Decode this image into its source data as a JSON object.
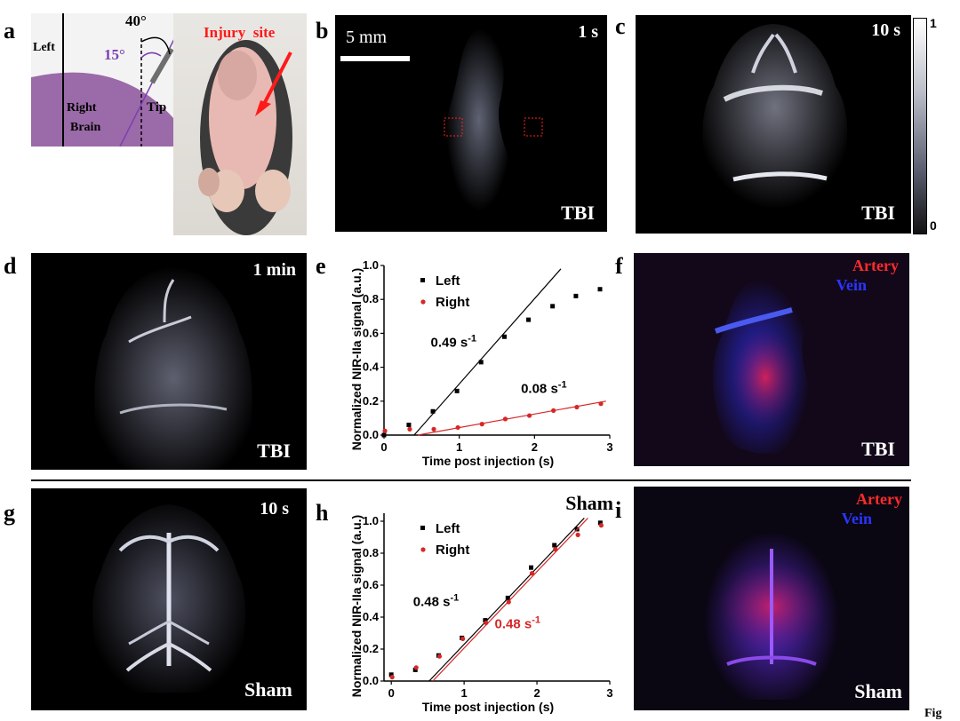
{
  "labels": {
    "a": "a",
    "b": "b",
    "c": "c",
    "d": "d",
    "e": "e",
    "f": "f",
    "g": "g",
    "h": "h",
    "i": "i"
  },
  "panel_a": {
    "angle_outer": "40°",
    "angle_inner": "15°",
    "left": "Left",
    "right_brain_1": "Right",
    "right_brain_2": "Brain",
    "tip": "Tip",
    "injury": "Injury  site",
    "colors": {
      "brain": "#9b6aa8",
      "injury_text": "#ff1a1a",
      "angle_purple": "#7d3fb0"
    }
  },
  "panel_b": {
    "time": "1 s",
    "scale": "5 mm",
    "group": "TBI"
  },
  "panel_c": {
    "time": "10 s",
    "group": "TBI",
    "cbar_max": "1",
    "cbar_min": "0"
  },
  "panel_d": {
    "time": "1 min",
    "group": "TBI"
  },
  "panel_f": {
    "artery": "Artery",
    "vein": "Vein",
    "group": "TBI"
  },
  "panel_g": {
    "time": "10 s",
    "group": "Sham"
  },
  "panel_i": {
    "artery": "Artery",
    "vein": "Vein",
    "group": "Sham"
  },
  "footer": {
    "fig": "Fig"
  },
  "chart_data": [
    {
      "id": "e",
      "type": "scatter",
      "xlabel": "Time post injection (s)",
      "ylabel": "Normalized NIR-IIa signal (a.u.)",
      "xlim": [
        0,
        3
      ],
      "ylim": [
        0,
        1.0
      ],
      "xticks": [
        "0",
        "1",
        "2",
        "3"
      ],
      "yticks": [
        "0.0",
        "0.2",
        "0.4",
        "0.6",
        "0.8",
        "1.0"
      ],
      "legend_position": "top-left",
      "series": [
        {
          "name": "Left",
          "color": "#000000",
          "x": [
            0.0,
            0.33,
            0.65,
            0.97,
            1.29,
            1.6,
            1.92,
            2.24,
            2.55,
            2.87
          ],
          "y": [
            0.0,
            0.06,
            0.14,
            0.26,
            0.43,
            0.58,
            0.68,
            0.76,
            0.82,
            0.86
          ],
          "fit": {
            "x": [
              0.4,
              2.35
            ],
            "y": [
              0.0,
              0.98
            ]
          }
        },
        {
          "name": "Right",
          "color": "#d62728",
          "x": [
            0.0,
            0.33,
            0.65,
            0.97,
            1.29,
            1.6,
            1.92,
            2.24,
            2.55,
            2.87
          ],
          "y": [
            0.03,
            0.04,
            0.04,
            0.05,
            0.07,
            0.1,
            0.12,
            0.15,
            0.17,
            0.19
          ],
          "fit": {
            "x": [
              0.45,
              2.95
            ],
            "y": [
              0.0,
              0.2
            ]
          }
        }
      ],
      "annotations": [
        {
          "text": "0.49 s",
          "sup": "-1",
          "x": 0.62,
          "y": 0.52,
          "color": "#000000"
        },
        {
          "text": "0.08 s",
          "sup": "-1",
          "x": 1.82,
          "y": 0.25,
          "color": "#000000"
        }
      ]
    },
    {
      "id": "h",
      "type": "scatter",
      "title": "Sham",
      "xlabel": "Time post injection (s)",
      "ylabel": "Normalized NIR-IIa signal (a.u.)",
      "xlim": [
        -0.1,
        3
      ],
      "ylim": [
        0,
        1.05
      ],
      "xticks": [
        "0",
        "1",
        "2",
        "3"
      ],
      "yticks": [
        "0.0",
        "0.2",
        "0.4",
        "0.6",
        "0.8",
        "1.0"
      ],
      "legend_position": "top-left",
      "series": [
        {
          "name": "Left",
          "color": "#000000",
          "x": [
            0.0,
            0.33,
            0.65,
            0.97,
            1.29,
            1.6,
            1.92,
            2.24,
            2.55,
            2.87
          ],
          "y": [
            0.04,
            0.07,
            0.16,
            0.27,
            0.38,
            0.52,
            0.71,
            0.85,
            0.95,
            0.99
          ],
          "fit": {
            "x": [
              0.52,
              2.65
            ],
            "y": [
              0.0,
              1.02
            ]
          }
        },
        {
          "name": "Right",
          "color": "#d62728",
          "x": [
            0.0,
            0.33,
            0.65,
            0.97,
            1.29,
            1.6,
            1.92,
            2.24,
            2.55,
            2.87
          ],
          "y": [
            0.03,
            0.09,
            0.16,
            0.27,
            0.37,
            0.5,
            0.68,
            0.83,
            0.92,
            0.98
          ],
          "fit": {
            "x": [
              0.57,
              2.7
            ],
            "y": [
              0.0,
              1.02
            ]
          }
        }
      ],
      "annotations": [
        {
          "text": "0.48 s",
          "sup": "-1",
          "x": 0.3,
          "y": 0.47,
          "color": "#000000"
        },
        {
          "text": "0.48 s",
          "sup": "-1",
          "x": 1.42,
          "y": 0.33,
          "color": "#d62728"
        }
      ]
    }
  ]
}
